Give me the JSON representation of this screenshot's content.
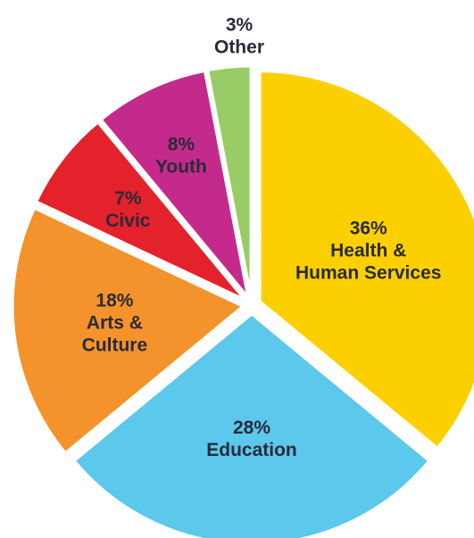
{
  "chart_data": {
    "type": "pie",
    "title": "",
    "slices": [
      {
        "label": [
          "36%",
          "Health &",
          "Human Services"
        ],
        "value": 36,
        "color": "#fcd000"
      },
      {
        "label": [
          "28%",
          "Education"
        ],
        "value": 28,
        "color": "#5bc8ec"
      },
      {
        "label": [
          "18%",
          "Arts &",
          "Culture"
        ],
        "value": 18,
        "color": "#f4932b"
      },
      {
        "label": [
          "7%",
          "Civic"
        ],
        "value": 7,
        "color": "#e3222c"
      },
      {
        "label": [
          "8%",
          "Youth"
        ],
        "value": 8,
        "color": "#c42a8c"
      },
      {
        "label": [
          "3%",
          "Other"
        ],
        "value": 3,
        "color": "#99cc66"
      }
    ]
  }
}
